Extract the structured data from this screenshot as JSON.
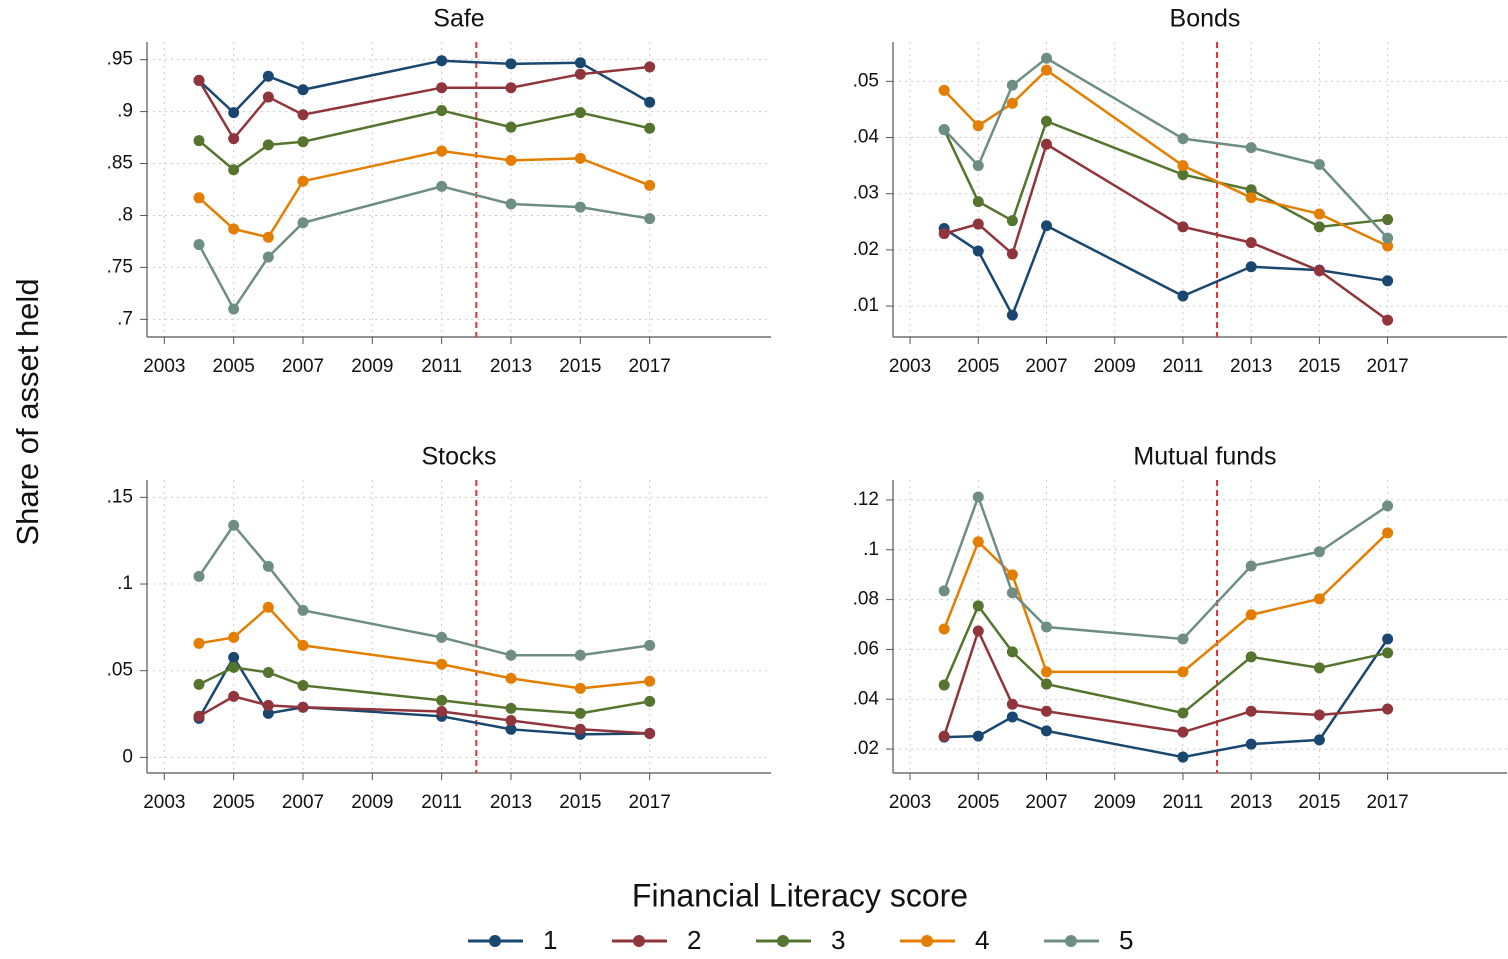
{
  "ylabel": "Share of asset held",
  "legend": {
    "title": "Financial Literacy score",
    "items": [
      {
        "name": "1",
        "color": "#1a476f"
      },
      {
        "name": "2",
        "color": "#90353b"
      },
      {
        "name": "3",
        "color": "#55752f"
      },
      {
        "name": "4",
        "color": "#e37e00"
      },
      {
        "name": "5",
        "color": "#6e8e84"
      }
    ]
  },
  "chart_data": [
    {
      "type": "line",
      "title": "Safe",
      "x": [
        2004,
        2005,
        2006,
        2007,
        2011,
        2013,
        2015,
        2017
      ],
      "xlim": [
        2002.5,
        2020.5
      ],
      "xticks": [
        2003,
        2005,
        2007,
        2009,
        2011,
        2013,
        2015,
        2017
      ],
      "ylim": [
        0.683,
        0.967
      ],
      "yticks": [
        {
          "value": 0.7,
          "label": ".7"
        },
        {
          "value": 0.75,
          "label": ".75"
        },
        {
          "value": 0.8,
          "label": ".8"
        },
        {
          "value": 0.85,
          "label": ".85"
        },
        {
          "value": 0.9,
          "label": ".9"
        },
        {
          "value": 0.95,
          "label": ".95"
        }
      ],
      "grid": true,
      "vline": 2012,
      "series": [
        {
          "values": [
            0.93,
            0.899,
            0.934,
            0.921,
            0.949,
            0.946,
            0.947,
            0.909
          ]
        },
        {
          "values": [
            0.93,
            0.874,
            0.914,
            0.897,
            0.923,
            0.923,
            0.936,
            0.943
          ]
        },
        {
          "values": [
            0.872,
            0.844,
            0.868,
            0.871,
            0.901,
            0.885,
            0.899,
            0.884
          ]
        },
        {
          "values": [
            0.817,
            0.787,
            0.779,
            0.833,
            0.862,
            0.853,
            0.855,
            0.829
          ]
        },
        {
          "values": [
            0.772,
            0.71,
            0.76,
            0.793,
            0.828,
            0.811,
            0.808,
            0.797
          ]
        }
      ]
    },
    {
      "type": "line",
      "title": "Bonds",
      "x": [
        2004,
        2005,
        2006,
        2007,
        2011,
        2013,
        2015,
        2017
      ],
      "xlim": [
        2002.5,
        2020.5
      ],
      "xticks": [
        2003,
        2005,
        2007,
        2009,
        2011,
        2013,
        2015,
        2017
      ],
      "ylim": [
        0.0045,
        0.057
      ],
      "yticks": [
        {
          "value": 0.01,
          "label": ".01"
        },
        {
          "value": 0.02,
          "label": ".02"
        },
        {
          "value": 0.03,
          "label": ".03"
        },
        {
          "value": 0.04,
          "label": ".04"
        },
        {
          "value": 0.05,
          "label": ".05"
        }
      ],
      "grid": true,
      "vline": 2012,
      "series": [
        {
          "values": [
            0.0238,
            0.0198,
            0.0084,
            0.0243,
            0.0118,
            0.017,
            0.0164,
            0.0145
          ]
        },
        {
          "values": [
            0.0229,
            0.0246,
            0.0193,
            0.0388,
            0.0241,
            0.0213,
            0.0163,
            0.0075
          ]
        },
        {
          "values": [
            0.0414,
            0.0286,
            0.0252,
            0.0429,
            0.0334,
            0.0307,
            0.0241,
            0.0254
          ]
        },
        {
          "values": [
            0.0484,
            0.0421,
            0.0461,
            0.052,
            0.035,
            0.0293,
            0.0264,
            0.0207
          ]
        },
        {
          "values": [
            0.0414,
            0.035,
            0.0493,
            0.0541,
            0.0398,
            0.0382,
            0.0352,
            0.0221
          ]
        }
      ]
    },
    {
      "type": "line",
      "title": "Stocks",
      "x": [
        2004,
        2005,
        2006,
        2007,
        2011,
        2013,
        2015,
        2017
      ],
      "xlim": [
        2002.5,
        2020.5
      ],
      "xticks": [
        2003,
        2005,
        2007,
        2009,
        2011,
        2013,
        2015,
        2017
      ],
      "ylim": [
        -0.009,
        0.16
      ],
      "yticks": [
        0,
        {
          "value": 0.05,
          "label": ".05"
        },
        {
          "value": 0.1,
          "label": ".1"
        },
        {
          "value": 0.15,
          "label": ".15"
        }
      ],
      "grid": true,
      "vline": 2012,
      "series": [
        {
          "values": [
            0.0225,
            0.0577,
            0.0254,
            0.0289,
            0.0237,
            0.0162,
            0.0133,
            0.0138
          ]
        },
        {
          "values": [
            0.0237,
            0.0352,
            0.03,
            0.0289,
            0.0265,
            0.0213,
            0.0162,
            0.0138
          ]
        },
        {
          "values": [
            0.0421,
            0.0519,
            0.049,
            0.0415,
            0.0329,
            0.0283,
            0.0254,
            0.0323
          ]
        },
        {
          "values": [
            0.0658,
            0.0692,
            0.0866,
            0.0646,
            0.0537,
            0.0456,
            0.0398,
            0.0439
          ]
        },
        {
          "values": [
            0.1044,
            0.1339,
            0.1102,
            0.0848,
            0.0692,
            0.0589,
            0.0589,
            0.0646
          ]
        }
      ]
    },
    {
      "type": "line",
      "title": "Mutual funds",
      "x": [
        2004,
        2005,
        2006,
        2007,
        2011,
        2013,
        2015,
        2017
      ],
      "xlim": [
        2002.5,
        2020.5
      ],
      "xticks": [
        2003,
        2005,
        2007,
        2009,
        2011,
        2013,
        2015,
        2017
      ],
      "ylim": [
        0.0104,
        0.128
      ],
      "yticks": [
        {
          "value": 0.02,
          "label": ".02"
        },
        {
          "value": 0.04,
          "label": ".04"
        },
        {
          "value": 0.06,
          "label": ".06"
        },
        {
          "value": 0.08,
          "label": ".08"
        },
        {
          "value": 0.1,
          "label": ".1"
        },
        {
          "value": 0.12,
          "label": ".12"
        }
      ],
      "grid": true,
      "vline": 2012,
      "series": [
        {
          "values": [
            0.0248,
            0.0252,
            0.0329,
            0.0273,
            0.0168,
            0.022,
            0.0237,
            0.0642
          ]
        },
        {
          "values": [
            0.0252,
            0.0674,
            0.038,
            0.0352,
            0.0268,
            0.0352,
            0.0337,
            0.0361
          ]
        },
        {
          "values": [
            0.0457,
            0.0775,
            0.059,
            0.0461,
            0.0345,
            0.057,
            0.0526,
            0.0586
          ]
        },
        {
          "values": [
            0.0682,
            0.1032,
            0.0899,
            0.051,
            0.051,
            0.0739,
            0.0803,
            0.1068
          ]
        },
        {
          "values": [
            0.0835,
            0.1212,
            0.0827,
            0.069,
            0.0642,
            0.0935,
            0.0992,
            0.1176
          ]
        }
      ]
    }
  ]
}
